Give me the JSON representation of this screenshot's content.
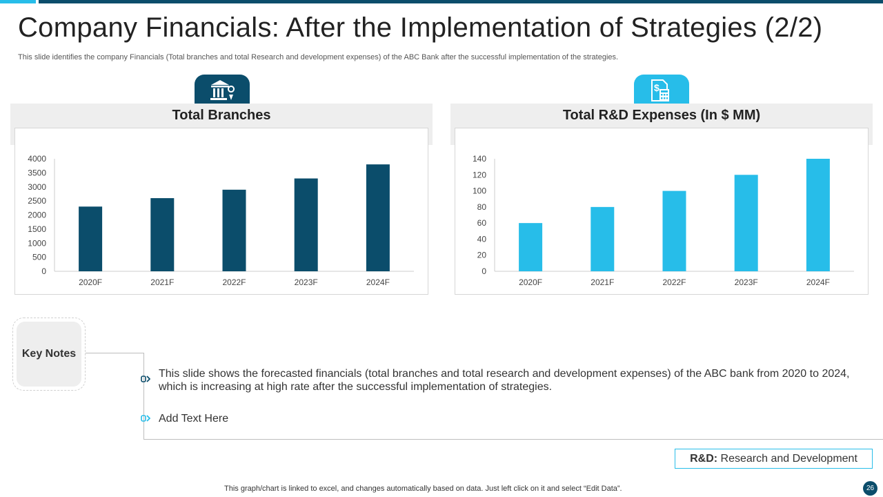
{
  "title": "Company Financials: After the Implementation of Strategies (2/2)",
  "subtitle": "This slide identifies the company Financials (Total branches and total Research and development expenses) of the ABC Bank after the successful implementation of the strategies.",
  "colors": {
    "dark_accent": "#0b4d6b",
    "light_accent": "#27bde9"
  },
  "icons": {
    "left": "bank-icon",
    "right": "calculator-dollar-icon"
  },
  "chart_data": [
    {
      "type": "bar",
      "title": "Total Branches",
      "categories": [
        "2020F",
        "2021F",
        "2022F",
        "2023F",
        "2024F"
      ],
      "values": [
        2300,
        2600,
        2900,
        3300,
        3800
      ],
      "ylim": [
        0,
        4000
      ],
      "yticks": [
        0,
        500,
        1000,
        1500,
        2000,
        2500,
        3000,
        3500,
        4000
      ],
      "xlabel": "",
      "ylabel": "",
      "color": "#0b4d6b",
      "grid": false,
      "legend": "none"
    },
    {
      "type": "bar",
      "title": "Total R&D Expenses (In $ MM)",
      "categories": [
        "2020F",
        "2021F",
        "2022F",
        "2023F",
        "2024F"
      ],
      "values": [
        60,
        80,
        100,
        120,
        140
      ],
      "ylim": [
        0,
        140
      ],
      "yticks": [
        0,
        20,
        40,
        60,
        80,
        100,
        120,
        140
      ],
      "xlabel": "",
      "ylabel": "",
      "color": "#27bde9",
      "grid": false,
      "legend": "none"
    }
  ],
  "key_notes": {
    "label": "Key Notes",
    "items": [
      "This slide shows the forecasted financials (total branches and total research and development expenses) of the ABC bank from 2020 to 2024, which is increasing at high rate after the successful implementation of strategies.",
      "Add Text Here"
    ]
  },
  "legend": {
    "abbr": "R&D:",
    "text": "Research and Development"
  },
  "footer": "This graph/chart is linked to excel,  and changes automatically based on data. Just left click on it and select “Edit Data”.",
  "page_number": "26"
}
